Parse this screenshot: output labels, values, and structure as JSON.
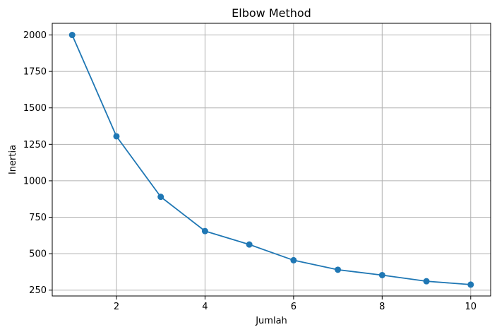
{
  "chart_data": {
    "type": "line",
    "title": "Elbow Method",
    "xlabel": "Jumlah",
    "ylabel": "Inertia",
    "x": [
      1,
      2,
      3,
      4,
      5,
      6,
      7,
      8,
      9,
      10
    ],
    "series": [
      {
        "values": [
          2000,
          1305,
          890,
          655,
          563,
          455,
          390,
          353,
          311,
          288
        ],
        "color": "#1f77b4",
        "marker": "circle"
      }
    ],
    "xlim": [
      0.55,
      10.45
    ],
    "ylim": [
      210,
      2080
    ],
    "xticks": [
      2,
      4,
      6,
      8,
      10
    ],
    "xtick_labels": [
      "2",
      "4",
      "6",
      "8",
      "10"
    ],
    "yticks": [
      250,
      500,
      750,
      1000,
      1250,
      1500,
      1750,
      2000
    ],
    "ytick_labels": [
      "250",
      "500",
      "750",
      "1000",
      "1250",
      "1500",
      "1750",
      "2000"
    ],
    "grid": true,
    "grid_color": "#b0b0b0",
    "axis_color": "#000000"
  }
}
